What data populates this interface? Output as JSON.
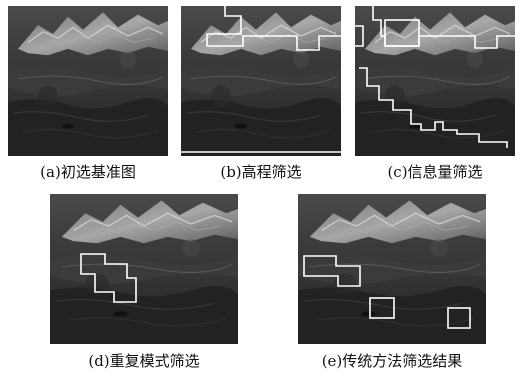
{
  "figure": {
    "panels": [
      {
        "id": "a",
        "caption": "(a)初选基准图"
      },
      {
        "id": "b",
        "caption": "(b)高程筛选"
      },
      {
        "id": "c",
        "caption": "(c)信息量筛选"
      },
      {
        "id": "d",
        "caption": "(d)重复模式筛选"
      },
      {
        "id": "e",
        "caption": "(e)传统方法筛选结果"
      }
    ],
    "overlay_color": "#ffffff"
  }
}
